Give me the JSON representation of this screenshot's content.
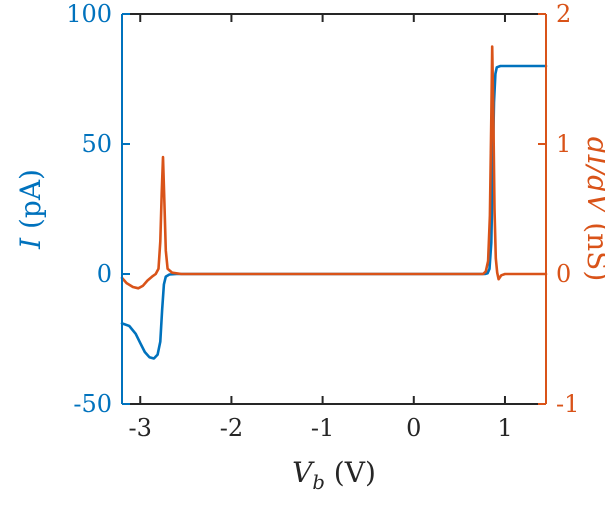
{
  "chart_data": {
    "type": "line",
    "title": "",
    "grid": false,
    "legend": "none",
    "xlabel": "V_b (V)",
    "xlabel_parts": [
      {
        "t": "V",
        "style": "italic"
      },
      {
        "t": "b",
        "style": "sub"
      },
      {
        "t": " (V)",
        "style": "normal"
      }
    ],
    "xlim": [
      -3.2,
      1.45
    ],
    "x_ticks": [
      -3,
      -2,
      -1,
      0,
      1
    ],
    "axis_color": "#262626",
    "left_axis": {
      "label": "I (pA)",
      "label_parts": [
        {
          "t": "I",
          "style": "italic"
        },
        {
          "t": " (pA)",
          "style": "normal"
        }
      ],
      "color": "#0072BD",
      "lim": [
        -50,
        100
      ],
      "ticks": [
        -50,
        0,
        50,
        100
      ]
    },
    "right_axis": {
      "label": "dI/dV (nS)",
      "label_parts": [
        {
          "t": "dI/dV",
          "style": "italic"
        },
        {
          "t": " (nS)",
          "style": "normal"
        }
      ],
      "color": "#D95319",
      "lim": [
        -1,
        2
      ],
      "ticks": [
        -1,
        0,
        1,
        2
      ]
    },
    "series": [
      {
        "name": "I",
        "axis": "left",
        "color": "#0072BD",
        "points": [
          [
            -3.2,
            -19
          ],
          [
            -3.12,
            -20
          ],
          [
            -3.05,
            -23
          ],
          [
            -3.0,
            -26.5
          ],
          [
            -2.95,
            -30
          ],
          [
            -2.9,
            -32
          ],
          [
            -2.85,
            -32.5
          ],
          [
            -2.81,
            -31
          ],
          [
            -2.78,
            -26
          ],
          [
            -2.76,
            -14
          ],
          [
            -2.74,
            -4
          ],
          [
            -2.72,
            -1
          ],
          [
            -2.68,
            -0.2
          ],
          [
            -2.6,
            0
          ],
          [
            0.78,
            0
          ],
          [
            0.81,
            0.3
          ],
          [
            0.83,
            2
          ],
          [
            0.85,
            12
          ],
          [
            0.865,
            40
          ],
          [
            0.88,
            66
          ],
          [
            0.895,
            77
          ],
          [
            0.91,
            79.5
          ],
          [
            0.95,
            80
          ],
          [
            1.45,
            80
          ]
        ]
      },
      {
        "name": "dI/dV",
        "axis": "right",
        "color": "#D95319",
        "points": [
          [
            -3.2,
            -0.03
          ],
          [
            -3.15,
            -0.07
          ],
          [
            -3.08,
            -0.1
          ],
          [
            -3.02,
            -0.11
          ],
          [
            -2.97,
            -0.09
          ],
          [
            -2.92,
            -0.05
          ],
          [
            -2.87,
            -0.02
          ],
          [
            -2.83,
            0
          ],
          [
            -2.8,
            0.04
          ],
          [
            -2.78,
            0.25
          ],
          [
            -2.765,
            0.62
          ],
          [
            -2.75,
            0.9
          ],
          [
            -2.735,
            0.55
          ],
          [
            -2.72,
            0.18
          ],
          [
            -2.7,
            0.04
          ],
          [
            -2.65,
            0.01
          ],
          [
            -2.55,
            0
          ],
          [
            0.76,
            0
          ],
          [
            0.79,
            0.02
          ],
          [
            0.815,
            0.1
          ],
          [
            0.835,
            0.45
          ],
          [
            0.85,
            1.2
          ],
          [
            0.86,
            1.75
          ],
          [
            0.872,
            1.25
          ],
          [
            0.885,
            0.5
          ],
          [
            0.9,
            0.12
          ],
          [
            0.915,
            0.01
          ],
          [
            0.93,
            -0.04
          ],
          [
            0.96,
            -0.01
          ],
          [
            1.0,
            0
          ],
          [
            1.45,
            0
          ]
        ]
      }
    ]
  }
}
